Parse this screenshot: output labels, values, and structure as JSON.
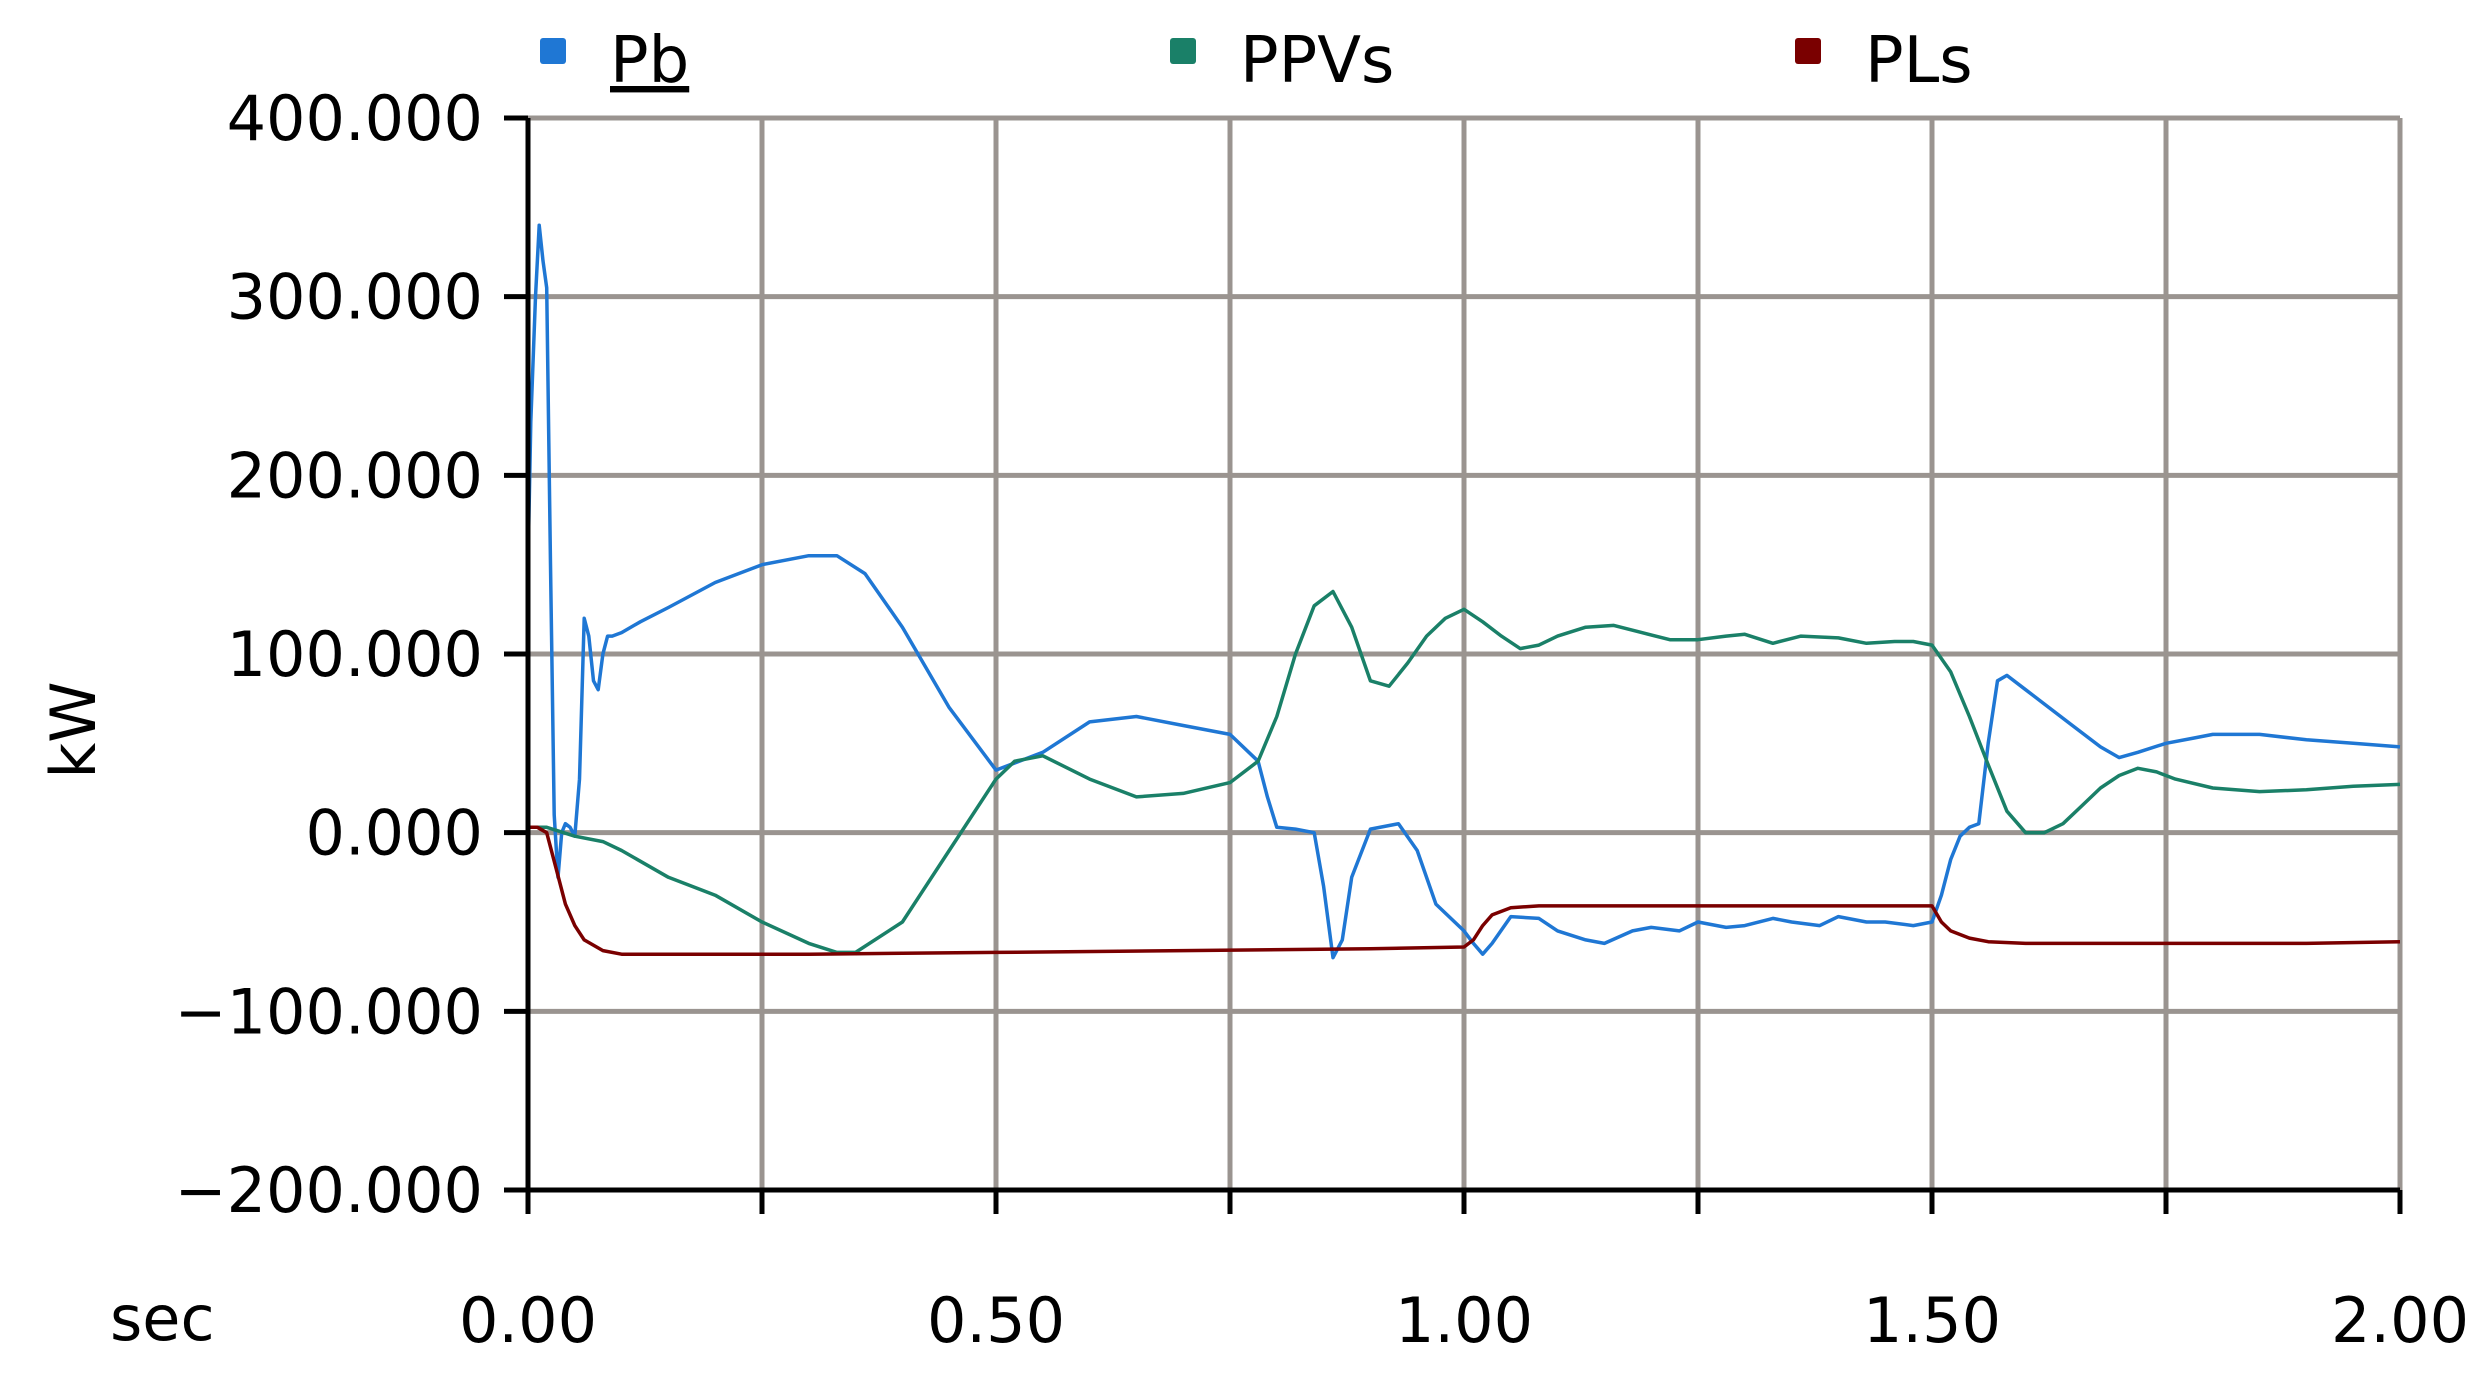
{
  "chart_data": {
    "type": "line",
    "ylabel": "kW",
    "xlabel": "sec",
    "xlim": [
      0,
      2
    ],
    "ylim": [
      -200,
      400
    ],
    "grid": true,
    "legend_position": "top",
    "x_ticks": [
      0,
      0.25,
      0.5,
      0.75,
      1.0,
      1.25,
      1.5,
      1.75,
      2.0
    ],
    "x_tick_labels": [
      "0.00",
      "",
      "0.50",
      "",
      "1.00",
      "",
      "1.50",
      "",
      "2.00"
    ],
    "y_ticks": [
      400,
      300,
      200,
      100,
      0,
      -100,
      -200
    ],
    "y_tick_labels": [
      "400.000",
      "300.000",
      "200.000",
      "100.000",
      "0.000",
      "−100.000",
      "−200.000"
    ],
    "colors": {
      "grid": "#9a9490",
      "axis": "#000000"
    },
    "series": [
      {
        "name": "Pb",
        "color": "#1f77d4",
        "x": [
          0.0,
          0.003,
          0.008,
          0.012,
          0.016,
          0.02,
          0.024,
          0.028,
          0.032,
          0.036,
          0.04,
          0.045,
          0.05,
          0.055,
          0.06,
          0.065,
          0.07,
          0.075,
          0.08,
          0.085,
          0.09,
          0.1,
          0.12,
          0.15,
          0.2,
          0.25,
          0.3,
          0.33,
          0.36,
          0.4,
          0.45,
          0.5,
          0.55,
          0.6,
          0.65,
          0.7,
          0.75,
          0.78,
          0.79,
          0.8,
          0.82,
          0.84,
          0.85,
          0.86,
          0.87,
          0.88,
          0.9,
          0.93,
          0.95,
          0.97,
          1.0,
          1.01,
          1.02,
          1.03,
          1.05,
          1.08,
          1.1,
          1.13,
          1.15,
          1.18,
          1.2,
          1.23,
          1.25,
          1.28,
          1.3,
          1.33,
          1.35,
          1.38,
          1.4,
          1.43,
          1.45,
          1.48,
          1.5,
          1.51,
          1.52,
          1.53,
          1.54,
          1.55,
          1.56,
          1.57,
          1.58,
          1.6,
          1.62,
          1.65,
          1.68,
          1.7,
          1.72,
          1.75,
          1.78,
          1.8,
          1.85,
          1.9,
          1.95,
          2.0
        ],
        "values": [
          150,
          230,
          300,
          340,
          320,
          305,
          150,
          10,
          -25,
          0,
          5,
          3,
          -2,
          30,
          120,
          110,
          85,
          80,
          100,
          110,
          110,
          112,
          118,
          126,
          140,
          150,
          155,
          155,
          145,
          115,
          70,
          35,
          45,
          62,
          65,
          60,
          55,
          40,
          20,
          3,
          2,
          0,
          -30,
          -70,
          -60,
          -25,
          2,
          5,
          -10,
          -40,
          -55,
          -62,
          -68,
          -62,
          -47,
          -48,
          -55,
          -60,
          -62,
          -55,
          -53,
          -55,
          -50,
          -53,
          -52,
          -48,
          -50,
          -52,
          -47,
          -50,
          -50,
          -52,
          -50,
          -35,
          -15,
          -2,
          3,
          5,
          50,
          85,
          88,
          80,
          72,
          60,
          48,
          42,
          45,
          50,
          53,
          55,
          55,
          52,
          50,
          48
        ]
      },
      {
        "name": "PPVs",
        "color": "#1a8068",
        "x": [
          0.0,
          0.02,
          0.05,
          0.08,
          0.1,
          0.15,
          0.2,
          0.25,
          0.3,
          0.33,
          0.35,
          0.4,
          0.45,
          0.5,
          0.52,
          0.55,
          0.6,
          0.65,
          0.7,
          0.75,
          0.78,
          0.8,
          0.82,
          0.84,
          0.86,
          0.88,
          0.9,
          0.92,
          0.94,
          0.96,
          0.98,
          1.0,
          1.02,
          1.04,
          1.06,
          1.08,
          1.1,
          1.13,
          1.16,
          1.19,
          1.22,
          1.25,
          1.28,
          1.3,
          1.33,
          1.36,
          1.4,
          1.43,
          1.46,
          1.48,
          1.5,
          1.52,
          1.54,
          1.56,
          1.58,
          1.6,
          1.62,
          1.64,
          1.66,
          1.68,
          1.7,
          1.72,
          1.74,
          1.76,
          1.8,
          1.85,
          1.9,
          1.95,
          2.0
        ],
        "values": [
          3,
          3,
          -2,
          -5,
          -10,
          -25,
          -35,
          -50,
          -62,
          -67,
          -67,
          -50,
          -10,
          30,
          40,
          43,
          30,
          20,
          22,
          28,
          40,
          65,
          100,
          127,
          135,
          115,
          85,
          82,
          95,
          110,
          120,
          125,
          118,
          110,
          103,
          105,
          110,
          115,
          116,
          112,
          108,
          108,
          110,
          111,
          106,
          110,
          109,
          106,
          107,
          107,
          105,
          90,
          65,
          38,
          12,
          0,
          0,
          5,
          15,
          25,
          32,
          36,
          34,
          30,
          25,
          23,
          24,
          26,
          27
        ]
      },
      {
        "name": "PLs",
        "color": "#7a0000",
        "x": [
          0.0,
          0.01,
          0.02,
          0.03,
          0.04,
          0.05,
          0.06,
          0.08,
          0.1,
          0.15,
          0.3,
          0.5,
          0.7,
          0.9,
          1.0,
          1.01,
          1.02,
          1.03,
          1.05,
          1.08,
          1.1,
          1.2,
          1.3,
          1.4,
          1.49,
          1.5,
          1.51,
          1.52,
          1.54,
          1.56,
          1.6,
          1.7,
          1.8,
          1.9,
          2.0
        ],
        "values": [
          3,
          3,
          0,
          -20,
          -40,
          -52,
          -60,
          -66,
          -68,
          -68,
          -68,
          -67,
          -66,
          -65,
          -64,
          -60,
          -52,
          -46,
          -42,
          -41,
          -41,
          -41,
          -41,
          -41,
          -41,
          -41,
          -50,
          -55,
          -59,
          -61,
          -62,
          -62,
          -62,
          -62,
          -61
        ]
      }
    ]
  }
}
